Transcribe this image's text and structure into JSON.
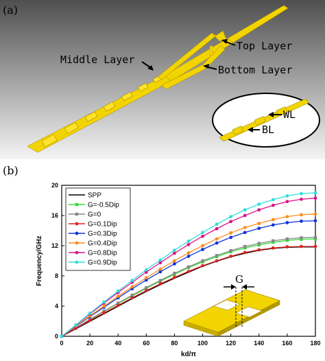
{
  "panel_a": {
    "label": "(a)",
    "annotations": {
      "middle_layer": "Middle Layer",
      "top_layer": "Top Layer",
      "bottom_layer": "Bottom Layer",
      "wl": "WL",
      "bl": "BL"
    },
    "colors": {
      "structure": "#f2d500",
      "background_top": "#5a5a5a",
      "background_bottom": "#f2f2f2"
    }
  },
  "panel_b": {
    "label": "(b)",
    "inset_label": "G"
  },
  "chart_data": {
    "type": "line",
    "title": "",
    "xlabel": "kd/π",
    "ylabel": "Frequency/GHz",
    "xlim": [
      0,
      180
    ],
    "ylim": [
      0,
      20
    ],
    "xticks": [
      0,
      20,
      40,
      60,
      80,
      100,
      120,
      140,
      160,
      180
    ],
    "yticks": [
      0,
      4,
      8,
      12,
      16,
      20
    ],
    "grid": false,
    "legend": "top-left",
    "x": [
      0,
      10,
      20,
      30,
      40,
      50,
      60,
      70,
      80,
      90,
      100,
      110,
      120,
      130,
      140,
      150,
      160,
      170,
      180
    ],
    "series": [
      {
        "name": "SPP",
        "color": "#000000",
        "marker": "none",
        "values": [
          0,
          1.0,
          2.0,
          3.0,
          4.0,
          5.0,
          5.95,
          6.85,
          7.7,
          8.5,
          9.3,
          9.95,
          10.55,
          11.0,
          11.4,
          11.65,
          11.8,
          11.85,
          11.85
        ]
      },
      {
        "name": "G=-0.5Dip",
        "color": "#33dd33",
        "marker": "square",
        "values": [
          0,
          1.1,
          2.2,
          3.3,
          4.35,
          5.35,
          6.35,
          7.3,
          8.2,
          9.1,
          9.85,
          10.55,
          11.2,
          11.7,
          12.1,
          12.45,
          12.7,
          12.85,
          12.9
        ]
      },
      {
        "name": "G=0",
        "color": "#888888",
        "marker": "square",
        "values": [
          0,
          1.12,
          2.25,
          3.35,
          4.4,
          5.45,
          6.45,
          7.4,
          8.35,
          9.2,
          10.0,
          10.7,
          11.35,
          11.9,
          12.3,
          12.65,
          12.9,
          13.05,
          13.1
        ]
      },
      {
        "name": "G=0.1Dip",
        "color": "#dd2222",
        "marker": "circle",
        "values": [
          0,
          1.05,
          2.1,
          3.1,
          4.1,
          5.1,
          6.05,
          6.95,
          7.8,
          8.6,
          9.35,
          10.0,
          10.6,
          11.1,
          11.45,
          11.7,
          11.85,
          11.9,
          11.9
        ]
      },
      {
        "name": "G=0.3Dip",
        "color": "#1133dd",
        "marker": "circle",
        "values": [
          0,
          1.3,
          2.6,
          3.85,
          5.1,
          6.3,
          7.45,
          8.55,
          9.6,
          10.6,
          11.5,
          12.35,
          13.1,
          13.75,
          14.3,
          14.75,
          15.05,
          15.25,
          15.3
        ]
      },
      {
        "name": "G=0.4Dip",
        "color": "#ff8c1a",
        "marker": "circle",
        "values": [
          0,
          1.35,
          2.7,
          4.0,
          5.3,
          6.55,
          7.75,
          8.9,
          10.0,
          11.05,
          12.0,
          12.9,
          13.7,
          14.4,
          14.95,
          15.45,
          15.85,
          16.1,
          16.2
        ]
      },
      {
        "name": "G=0.8Dip",
        "color": "#dd1188",
        "marker": "circle",
        "values": [
          0,
          1.45,
          2.95,
          4.4,
          5.8,
          7.15,
          8.5,
          9.75,
          11.0,
          12.15,
          13.25,
          14.25,
          15.2,
          16.0,
          16.75,
          17.35,
          17.85,
          18.15,
          18.3
        ]
      },
      {
        "name": "G=0.9Dip",
        "color": "#33dddd",
        "marker": "circle",
        "values": [
          0,
          1.5,
          3.05,
          4.55,
          6.0,
          7.4,
          8.8,
          10.1,
          11.4,
          12.6,
          13.75,
          14.85,
          15.85,
          16.75,
          17.5,
          18.1,
          18.6,
          18.9,
          19.0
        ]
      }
    ]
  }
}
